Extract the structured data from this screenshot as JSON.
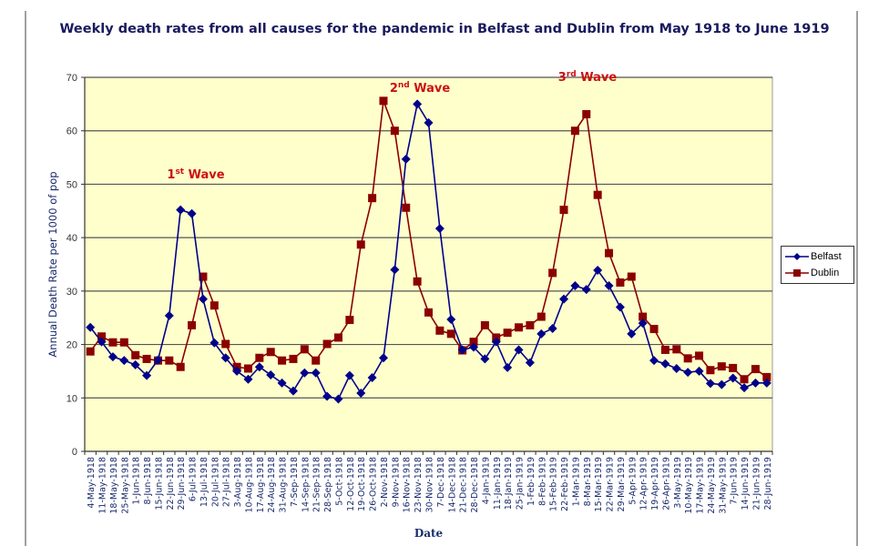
{
  "chart_data": {
    "type": "line",
    "title": "Weekly death rates from all causes for the pandemic in Belfast and Dublin from May 1918 to June 1919",
    "xlabel": "Date",
    "ylabel": "Annual Death Rate per 1000 of pop",
    "ylim": [
      0,
      70
    ],
    "yticks": [
      0,
      10,
      20,
      30,
      40,
      50,
      60,
      70
    ],
    "grid": true,
    "legend_position": "right",
    "categories": [
      "4-May-1918",
      "11-May-1918",
      "18-May-1918",
      "25-May-1918",
      "1-Jun-1918",
      "8-Jun-1918",
      "15-Jun-1918",
      "22-Jun-1918",
      "29-Jun-1918",
      "6-Jul-1918",
      "13-Jul-1918",
      "20-Jul-1918",
      "27-Jul-1918",
      "3-Aug-1918",
      "10-Aug-1918",
      "17-Aug-1918",
      "24-Aug-1918",
      "31-Aug-1918",
      "7-Sep-1918",
      "14-Sep-1918",
      "21-Sep-1918",
      "28-Sep-1918",
      "5-Oct-1918",
      "12-Oct-1918",
      "19-Oct-1918",
      "26-Oct-1918",
      "2-Nov-1918",
      "9-Nov-1918",
      "16-Nov-1918",
      "23-Nov-1918",
      "30-Nov-1918",
      "7-Dec-1918",
      "14-Dec-1918",
      "21-Dec-1918",
      "28-Dec-1918",
      "4-Jan-1919",
      "11-Jan-1919",
      "18-Jan-1919",
      "25-Jan-1919",
      "1-Feb-1919",
      "8-Feb-1919",
      "15-Feb-1919",
      "22-Feb-1919",
      "1-Mar-1919",
      "8-Mar-1919",
      "15-Mar-1919",
      "22-Mar-1919",
      "29-Mar-1919",
      "5-Apr-1919",
      "12-Apr-1919",
      "19-Apr-1919",
      "26-Apr-1919",
      "3-May-1919",
      "10-May-1919",
      "17-May-1919",
      "24-May-1919",
      "31-May-1919",
      "7-Jun-1919",
      "14-Jun-1919",
      "21-Jun-1919",
      "28-Jun-1919"
    ],
    "series": [
      {
        "name": "Belfast",
        "color": "#00008b",
        "marker": "diamond",
        "values": [
          23.2,
          20.5,
          17.7,
          17.0,
          16.2,
          14.2,
          17.1,
          25.4,
          45.2,
          44.5,
          28.5,
          20.3,
          17.5,
          15.0,
          13.5,
          15.8,
          14.3,
          12.8,
          11.3,
          14.7,
          14.7,
          10.3,
          9.8,
          14.2,
          10.9,
          13.8,
          17.5,
          34.0,
          54.7,
          65.0,
          61.5,
          41.7,
          24.7,
          19.0,
          19.5,
          17.3,
          20.5,
          15.7,
          19.0,
          16.6,
          22.0,
          23.0,
          28.5,
          31.0,
          30.3,
          33.9,
          31.0,
          27.0,
          22.0,
          24.0,
          17.0,
          16.4,
          15.5,
          14.8,
          15.0,
          12.7,
          12.5,
          13.7,
          11.9,
          12.8,
          12.8
        ]
      },
      {
        "name": "Dublin",
        "color": "#8b0000",
        "marker": "square",
        "values": [
          18.7,
          21.5,
          20.4,
          20.4,
          18.0,
          17.3,
          17.0,
          17.0,
          15.8,
          23.6,
          32.7,
          27.3,
          20.1,
          15.8,
          15.5,
          17.5,
          18.6,
          17.0,
          17.3,
          19.1,
          17.0,
          20.1,
          21.3,
          24.6,
          38.7,
          47.4,
          65.6,
          60.0,
          45.6,
          31.8,
          26.0,
          22.6,
          22.0,
          18.9,
          20.5,
          23.6,
          21.3,
          22.2,
          23.2,
          23.6,
          25.2,
          33.4,
          45.2,
          60.0,
          63.1,
          48.0,
          37.1,
          31.6,
          32.7,
          25.2,
          22.9,
          19.0,
          19.1,
          17.4,
          17.9,
          15.2,
          15.9,
          15.6,
          13.5,
          15.4,
          13.9
        ]
      }
    ],
    "annotations": [
      {
        "text": "Wave",
        "ordinal": "1",
        "suffix": "st",
        "near": "6-Jul-1918"
      },
      {
        "text": "Wave",
        "ordinal": "2",
        "suffix": "nd",
        "near": "9-Nov-1918"
      },
      {
        "text": "Wave",
        "ordinal": "3",
        "suffix": "rd",
        "near": "1-Mar-1919"
      }
    ],
    "annotation_color": "#cc1111"
  }
}
